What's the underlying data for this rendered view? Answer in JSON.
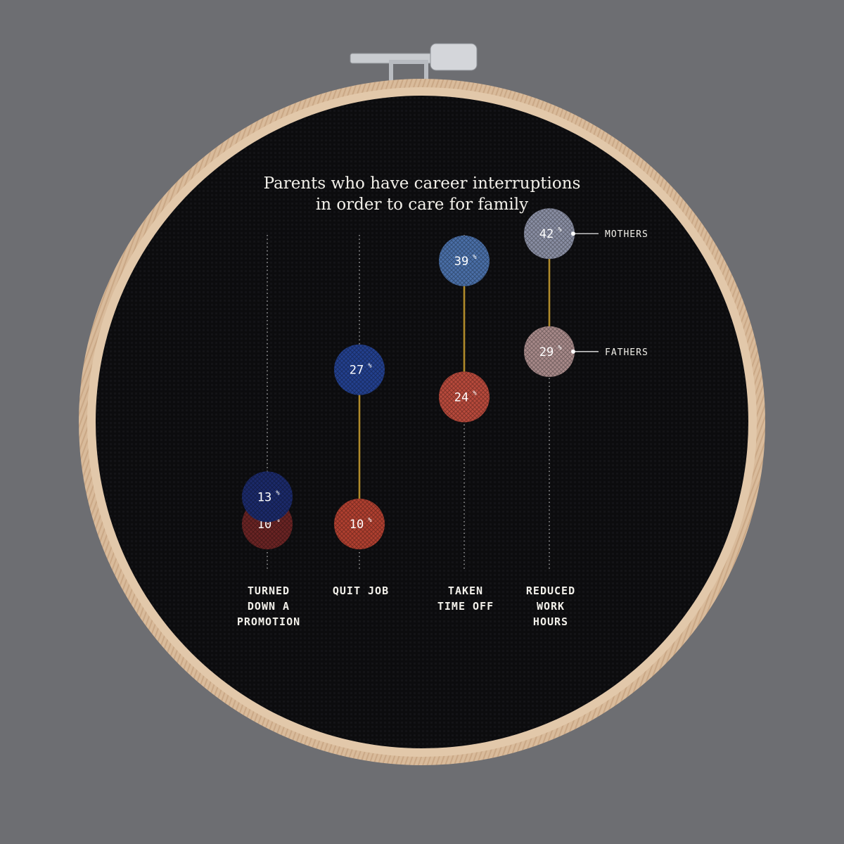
{
  "colors": {
    "background": "#6d6e72",
    "fabric": "#0c0c0e",
    "hoop": "#d8b898",
    "thread": "#b08a2a",
    "guide": "#cfcfcf"
  },
  "chart_data": {
    "type": "dot-plot",
    "title": [
      "Parents who have career interruptions",
      "in order to care for family"
    ],
    "categories": [
      [
        "TURNED",
        "DOWN A",
        "PROMOTION"
      ],
      [
        "QUIT JOB"
      ],
      [
        "TAKEN",
        "TIME OFF"
      ],
      [
        "REDUCED",
        "WORK",
        "HOURS"
      ]
    ],
    "unit": "%",
    "ylim": [
      0,
      50
    ],
    "series": [
      {
        "name": "MOTHERS",
        "values": [
          13,
          27,
          39,
          42
        ],
        "colors": [
          "#1b2a6a",
          "#23408e",
          "#4a6fa8",
          "#8a8fa4"
        ]
      },
      {
        "name": "FATHERS",
        "values": [
          10,
          10,
          24,
          29
        ],
        "colors": [
          "#6a2424",
          "#b04030",
          "#b84a3c",
          "#a88a8a"
        ]
      }
    ],
    "legend": {
      "placement": "right",
      "labels": [
        "MOTHERS",
        "FATHERS"
      ]
    }
  }
}
